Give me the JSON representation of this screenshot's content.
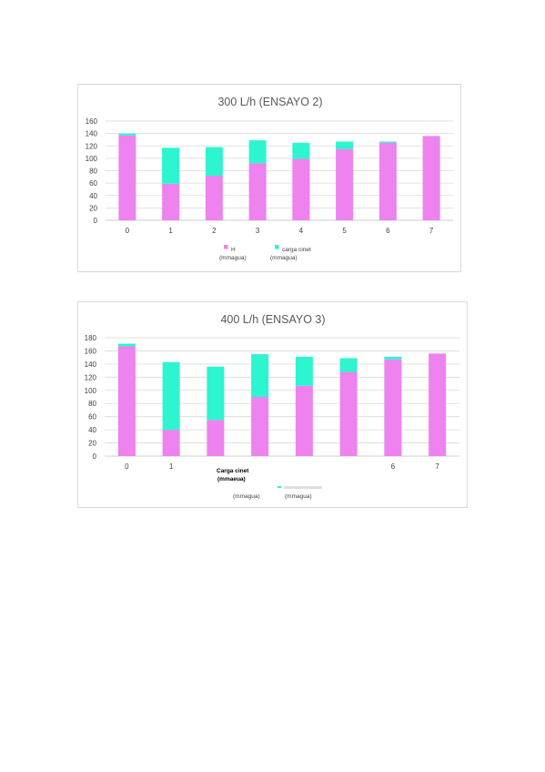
{
  "colors": {
    "h": "#ee82ee",
    "carga": "#2cf5cf",
    "grid": "#d9d9d9",
    "axis": "#bfbfbf"
  },
  "chart_data": [
    {
      "type": "bar",
      "stacked": true,
      "title": "300 L/h (ENSAYO 2)",
      "categories": [
        "0",
        "1",
        "2",
        "3",
        "4",
        "5",
        "6",
        "7"
      ],
      "ylim": [
        0,
        160
      ],
      "yticks": [
        "0",
        "20",
        "40",
        "60",
        "80",
        "100",
        "120",
        "140",
        "160"
      ],
      "grid": true,
      "legend_position": "bottom",
      "series": [
        {
          "name_line1": "H",
          "name_line2": "(mmagua)",
          "values": [
            137,
            59,
            72,
            92,
            99,
            115,
            125,
            136
          ]
        },
        {
          "name_line1": "carga cinet",
          "name_line2": "(mmagua)",
          "values": [
            3,
            58,
            46,
            37,
            26,
            12,
            2,
            0
          ]
        }
      ]
    },
    {
      "type": "bar",
      "stacked": true,
      "title": "400 L/h (ENSAYO 3)",
      "categories": [
        "0",
        "1",
        "",
        "",
        "",
        "",
        "6",
        "7"
      ],
      "ylim": [
        0,
        180
      ],
      "yticks": [
        "0",
        "20",
        "40",
        "60",
        "80",
        "100",
        "120",
        "140",
        "160",
        "180"
      ],
      "grid": true,
      "legend_position": "bottom",
      "series": [
        {
          "name_line1": "",
          "name_line2": "(mmagua)",
          "values": [
            167,
            40,
            55,
            90,
            107,
            128,
            147,
            156
          ]
        },
        {
          "name_line1": "",
          "name_line2": "(mmagua)",
          "values": [
            4,
            103,
            81,
            65,
            44,
            21,
            4,
            0
          ]
        }
      ],
      "overlay_label_line1": "Carga cinet",
      "overlay_label_line2": "(mmaeua)"
    }
  ]
}
